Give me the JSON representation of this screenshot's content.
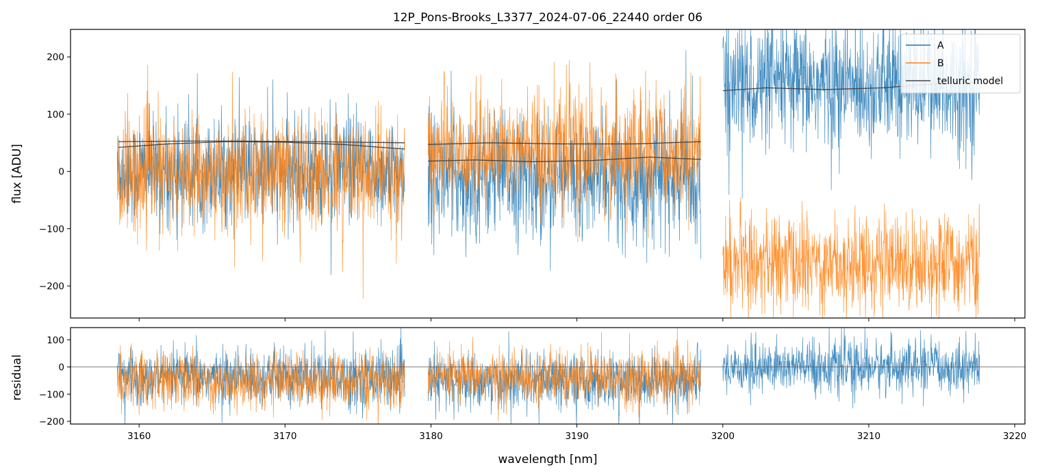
{
  "chart_data": {
    "type": "line",
    "title": "12P_Pons-Brooks_L3377_2024-07-06_22440  order 06",
    "xlabel": "wavelength [nm]",
    "xlim": [
      3155.3,
      3220.7
    ],
    "x_ticks": [
      3160,
      3170,
      3180,
      3190,
      3200,
      3210,
      3220
    ],
    "x_tick_labels": [
      "3160",
      "3170",
      "3180",
      "3190",
      "3200",
      "3210",
      "3220"
    ],
    "legend": {
      "placement": "top-right",
      "entries": [
        "A",
        "B",
        "telluric model"
      ]
    },
    "colors": {
      "A": "#1f77b4",
      "B": "#ff7f0e",
      "telluric model": "#444444",
      "zero_line": "#555555"
    },
    "segments": [
      {
        "x_start": 3158.5,
        "x_end": 3178.2
      },
      {
        "x_start": 3179.8,
        "x_end": 3198.5
      },
      {
        "x_start": 3200.0,
        "x_end": 3217.6
      }
    ],
    "panels": [
      {
        "name": "flux",
        "ylabel": "flux [ADU]",
        "ylim": [
          -256,
          248
        ],
        "y_ticks": [
          -200,
          -100,
          0,
          100,
          200
        ],
        "y_tick_labels": [
          "−200",
          "−100",
          "0",
          "100",
          "200"
        ],
        "series": [
          {
            "name": "A",
            "segment_levels": [
              0,
              -10,
              150
            ],
            "noise_sd": [
              45,
              52,
              55
            ]
          },
          {
            "name": "B",
            "segment_levels": [
              -5,
              35,
              -160
            ],
            "noise_sd": [
              50,
              50,
              42
            ]
          }
        ],
        "telluric_models": [
          {
            "segment": 0,
            "points": [
              [
                3158.6,
                52
              ],
              [
                3163,
                53
              ],
              [
                3167,
                53
              ],
              [
                3172,
                52
              ],
              [
                3178.2,
                50
              ]
            ]
          },
          {
            "segment": 0,
            "points": [
              [
                3158.6,
                42
              ],
              [
                3162,
                48
              ],
              [
                3166,
                52
              ],
              [
                3170,
                51
              ],
              [
                3174,
                47
              ],
              [
                3178.2,
                39
              ]
            ]
          },
          {
            "segment": 1,
            "points": [
              [
                3179.8,
                47
              ],
              [
                3184,
                50
              ],
              [
                3189,
                48
              ],
              [
                3194,
                48
              ],
              [
                3198.5,
                52
              ]
            ]
          },
          {
            "segment": 1,
            "points": [
              [
                3179.8,
                18
              ],
              [
                3183,
                20
              ],
              [
                3187,
                17
              ],
              [
                3191,
                19
              ],
              [
                3195,
                25
              ],
              [
                3198.5,
                21
              ]
            ]
          },
          {
            "segment": 2,
            "points": [
              [
                3200.0,
                141
              ],
              [
                3203,
                146
              ],
              [
                3207,
                143
              ],
              [
                3211,
                146
              ],
              [
                3214,
                152
              ],
              [
                3217.6,
                155
              ]
            ]
          }
        ]
      },
      {
        "name": "residual",
        "ylabel": "residual",
        "ylim": [
          -210,
          145
        ],
        "y_ticks": [
          -200,
          -100,
          0,
          100
        ],
        "y_tick_labels": [
          "−200",
          "−100",
          "0",
          "100"
        ],
        "zero_line": 0,
        "series": [
          {
            "name": "A",
            "segment_levels": [
              -40,
              -55,
              0
            ],
            "noise_sd": [
              50,
              52,
              48
            ],
            "segments_present": [
              0,
              1,
              2
            ]
          },
          {
            "name": "B",
            "segment_levels": [
              -50,
              -40,
              0
            ],
            "noise_sd": [
              50,
              48,
              0
            ],
            "segments_present": [
              0,
              1
            ]
          }
        ]
      }
    ]
  }
}
